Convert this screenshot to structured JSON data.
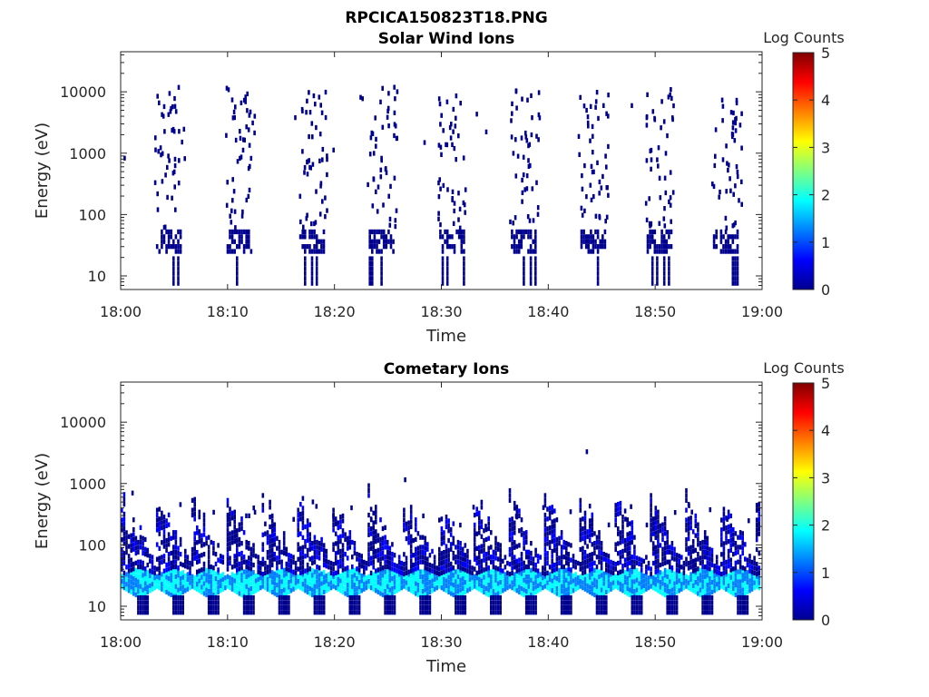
{
  "figure": {
    "title": "RPCICA150823T18.PNG"
  },
  "colors": {
    "jet": [
      "#00008F",
      "#0000FF",
      "#0080FF",
      "#00FFFF",
      "#80FF80",
      "#FFFF00",
      "#FF8000",
      "#FF0000",
      "#800000"
    ],
    "axis": "#262626"
  },
  "chart_data": [
    {
      "type": "heatmap",
      "title": "Solar Wind Ions",
      "xlabel": "Time",
      "ylabel": "Energy (eV)",
      "x_ticks": [
        "18:00",
        "18:10",
        "18:20",
        "18:30",
        "18:40",
        "18:50",
        "19:00"
      ],
      "y_ticks": [
        "10",
        "100",
        "1000",
        "10000"
      ],
      "y_scale": "log",
      "ylim": [
        6,
        45000
      ],
      "x_range_minutes": [
        0,
        60
      ],
      "colorbar": {
        "label": "Log Counts",
        "ticks": [
          "0",
          "1",
          "2",
          "3",
          "4",
          "5"
        ],
        "range": [
          0,
          5
        ]
      },
      "bursts_minute": [
        4.3,
        10.9,
        17.7,
        24.2,
        30.8,
        37.5,
        44.0,
        50.2,
        56.4
      ],
      "core_energy_ev": [
        25,
        60
      ],
      "core_level": 0.1,
      "scatter_energy_ev": [
        60,
        12000
      ],
      "scatter_level": 0.0
    },
    {
      "type": "heatmap",
      "title": "Cometary Ions",
      "xlabel": "Time",
      "ylabel": "Energy (eV)",
      "x_ticks": [
        "18:00",
        "18:10",
        "18:20",
        "18:30",
        "18:40",
        "18:50",
        "19:00"
      ],
      "y_ticks": [
        "10",
        "100",
        "1000",
        "10000"
      ],
      "y_scale": "log",
      "ylim": [
        6,
        45000
      ],
      "x_range_minutes": [
        0,
        60
      ],
      "colorbar": {
        "label": "Log Counts",
        "ticks": [
          "0",
          "1",
          "2",
          "3",
          "4",
          "5"
        ],
        "range": [
          0,
          5
        ]
      },
      "sweep_period_minutes": 3.3,
      "core_energy_ev": [
        20,
        50
      ],
      "core_level": 1.6,
      "outlier_points": [
        {
          "minute": 1.0,
          "energy_ev": 700
        },
        {
          "minute": 26.5,
          "energy_ev": 1150
        },
        {
          "minute": 43.5,
          "energy_ev": 3300
        }
      ]
    }
  ]
}
